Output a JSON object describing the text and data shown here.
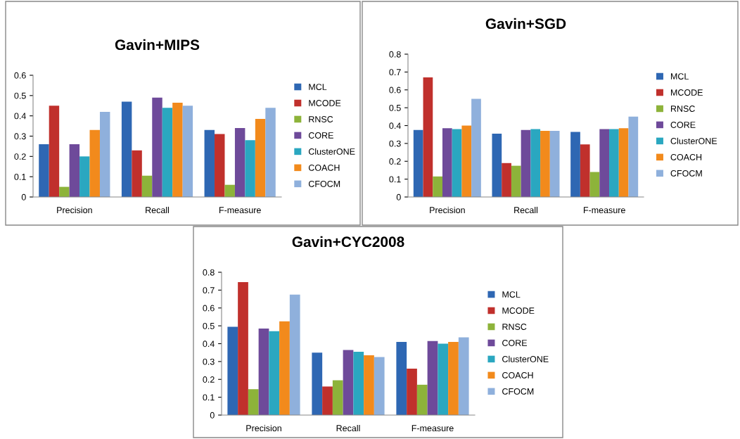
{
  "chart_data": [
    {
      "type": "bar",
      "title": "Gavin+MIPS",
      "categories": [
        "Precision",
        "Recall",
        "F-measure"
      ],
      "ylim": [
        0,
        0.6
      ],
      "yticks": [
        0,
        0.1,
        0.2,
        0.3,
        0.4,
        0.5,
        0.6
      ],
      "grid": false,
      "legend": "right",
      "series": [
        {
          "name": "MCL",
          "color": "#2e67b3",
          "values": [
            0.26,
            0.47,
            0.33
          ]
        },
        {
          "name": "MCODE",
          "color": "#c0302c",
          "values": [
            0.45,
            0.23,
            0.31
          ]
        },
        {
          "name": "RNSC",
          "color": "#8db33a",
          "values": [
            0.05,
            0.105,
            0.06
          ]
        },
        {
          "name": "CORE",
          "color": "#6e4a9a",
          "values": [
            0.26,
            0.49,
            0.34
          ]
        },
        {
          "name": "ClusterONE",
          "color": "#2aa7c0",
          "values": [
            0.2,
            0.44,
            0.28
          ]
        },
        {
          "name": "COACH",
          "color": "#f28a1c",
          "values": [
            0.33,
            0.465,
            0.385
          ]
        },
        {
          "name": "CFOCM",
          "color": "#8fb0dc",
          "values": [
            0.42,
            0.45,
            0.44
          ]
        }
      ]
    },
    {
      "type": "bar",
      "title": "Gavin+SGD",
      "categories": [
        "Precision",
        "Recall",
        "F-measure"
      ],
      "ylim": [
        0,
        0.8
      ],
      "yticks": [
        0,
        0.1,
        0.2,
        0.3,
        0.4,
        0.5,
        0.6,
        0.7,
        0.8
      ],
      "grid": false,
      "legend": "right",
      "series": [
        {
          "name": "MCL",
          "color": "#2e67b3",
          "values": [
            0.375,
            0.355,
            0.365
          ]
        },
        {
          "name": "MCODE",
          "color": "#c0302c",
          "values": [
            0.67,
            0.19,
            0.295
          ]
        },
        {
          "name": "RNSC",
          "color": "#8db33a",
          "values": [
            0.115,
            0.175,
            0.14
          ]
        },
        {
          "name": "CORE",
          "color": "#6e4a9a",
          "values": [
            0.385,
            0.375,
            0.38
          ]
        },
        {
          "name": "ClusterONE",
          "color": "#2aa7c0",
          "values": [
            0.38,
            0.38,
            0.38
          ]
        },
        {
          "name": "COACH",
          "color": "#f28a1c",
          "values": [
            0.4,
            0.37,
            0.385
          ]
        },
        {
          "name": "CFOCM",
          "color": "#8fb0dc",
          "values": [
            0.55,
            0.37,
            0.45
          ]
        }
      ]
    },
    {
      "type": "bar",
      "title": "Gavin+CYC2008",
      "categories": [
        "Precision",
        "Recall",
        "F-measure"
      ],
      "ylim": [
        0,
        0.8
      ],
      "yticks": [
        0,
        0.1,
        0.2,
        0.3,
        0.4,
        0.5,
        0.6,
        0.7,
        0.8
      ],
      "grid": false,
      "legend": "right",
      "series": [
        {
          "name": "MCL",
          "color": "#2e67b3",
          "values": [
            0.495,
            0.35,
            0.41
          ]
        },
        {
          "name": "MCODE",
          "color": "#c0302c",
          "values": [
            0.745,
            0.16,
            0.26
          ]
        },
        {
          "name": "RNSC",
          "color": "#8db33a",
          "values": [
            0.145,
            0.195,
            0.17
          ]
        },
        {
          "name": "CORE",
          "color": "#6e4a9a",
          "values": [
            0.485,
            0.365,
            0.415
          ]
        },
        {
          "name": "ClusterONE",
          "color": "#2aa7c0",
          "values": [
            0.47,
            0.355,
            0.4
          ]
        },
        {
          "name": "COACH",
          "color": "#f28a1c",
          "values": [
            0.525,
            0.335,
            0.41
          ]
        },
        {
          "name": "CFOCM",
          "color": "#8fb0dc",
          "values": [
            0.675,
            0.325,
            0.435
          ]
        }
      ]
    }
  ]
}
